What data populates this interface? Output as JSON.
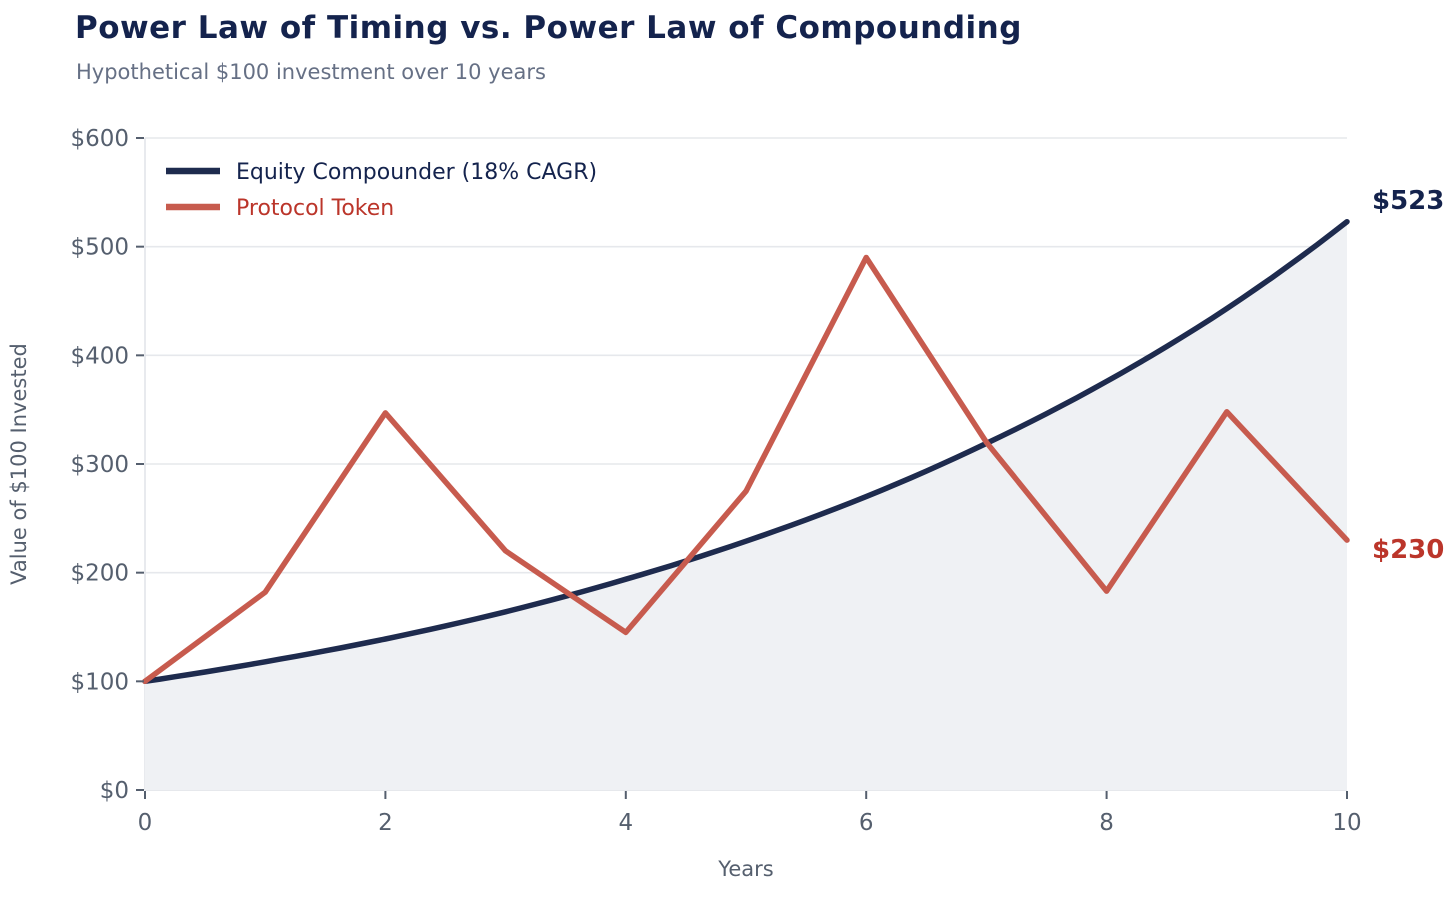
{
  "header": {
    "title": "Power Law of Timing vs. Power Law of Compounding",
    "subtitle": "Hypothetical $100 investment over 10 years"
  },
  "colors": {
    "title_text": "#14234d",
    "subtitle_text": "#667085",
    "axis_text": "#555f6e",
    "grid": "#e6e8ec",
    "spine": "#e2e4e9",
    "background": "#ffffff",
    "equity_line": "#1e2b4e",
    "equity_label": "#14234d",
    "token_line": "#c75b4e",
    "token_label": "#bb352a",
    "area_fill": "#eff1f4"
  },
  "chart_data": {
    "type": "line",
    "title": "Power Law of Timing vs. Power Law of Compounding",
    "subtitle": "Hypothetical $100 investment over 10 years",
    "xlabel": "Years",
    "ylabel": "Value of $100 Invested",
    "xlim": [
      0,
      10
    ],
    "ylim": [
      0,
      600
    ],
    "xticks": [
      0,
      2,
      4,
      6,
      8,
      10
    ],
    "xtick_labels": [
      "0",
      "2",
      "4",
      "6",
      "8",
      "10"
    ],
    "yticks": [
      0,
      100,
      200,
      300,
      400,
      500,
      600
    ],
    "ytick_labels": [
      "$0",
      "$100",
      "$200",
      "$300",
      "$400",
      "$500",
      "$600"
    ],
    "grid": "horizontal",
    "legend_position": "upper-left",
    "x": [
      0,
      1,
      2,
      3,
      4,
      5,
      6,
      7,
      8,
      9,
      10
    ],
    "series": [
      {
        "name": "Equity Compounder (18% CAGR)",
        "values": [
          100,
          118,
          139,
          164,
          194,
          229,
          270,
          319,
          376,
          443,
          523
        ],
        "interpolation": "exponential",
        "has_area_fill": true,
        "end_label": "$523"
      },
      {
        "name": "Protocol Token",
        "values": [
          100,
          182,
          347,
          220,
          145,
          275,
          490,
          320,
          183,
          348,
          230
        ],
        "interpolation": "linear",
        "has_area_fill": false,
        "end_label": "$230"
      }
    ]
  }
}
